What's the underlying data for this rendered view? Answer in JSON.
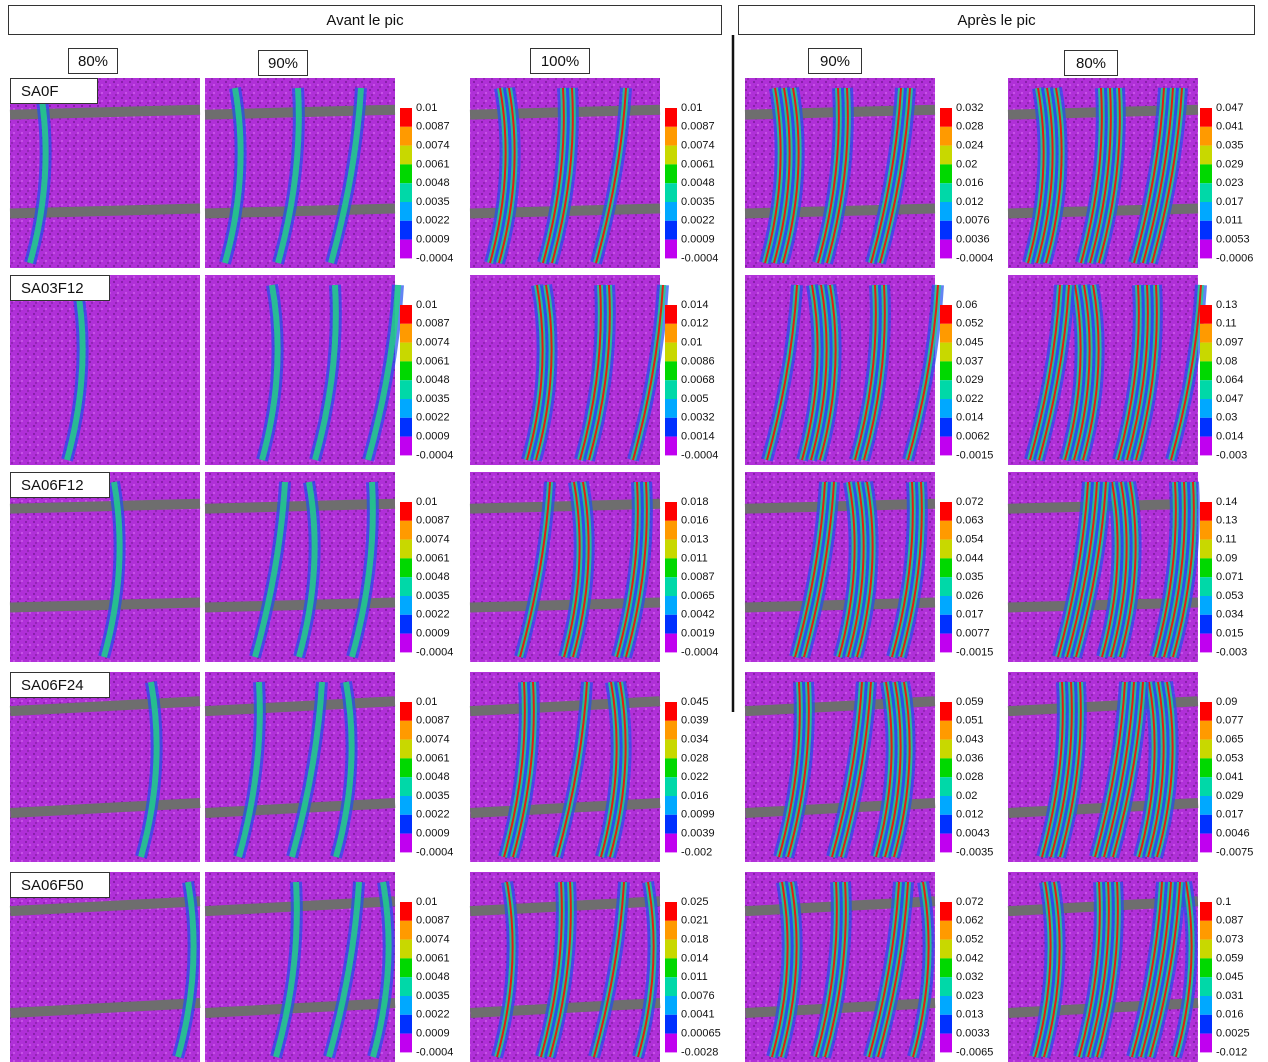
{
  "header": {
    "before": "Avant le pic",
    "after": "Après le pic"
  },
  "columns": [
    "80%",
    "90%",
    "100%",
    "90%",
    "80%"
  ],
  "rows": [
    {
      "label": "SA0F",
      "scales": [
        [
          "0.01",
          "0.0087",
          "0.0074",
          "0.0061",
          "0.0048",
          "0.0035",
          "0.0022",
          "0.0009",
          "-0.0004"
        ],
        [
          "0.01",
          "0.0087",
          "0.0074",
          "0.0061",
          "0.0048",
          "0.0035",
          "0.0022",
          "0.0009",
          "-0.0004"
        ],
        [
          "0.032",
          "0.028",
          "0.024",
          "0.02",
          "0.016",
          "0.012",
          "0.0076",
          "0.0036",
          "-0.0004"
        ],
        [
          "0.047",
          "0.041",
          "0.035",
          "0.029",
          "0.023",
          "0.017",
          "0.011",
          "0.0053",
          "-0.0006"
        ]
      ]
    },
    {
      "label": "SA03F12",
      "scales": [
        [
          "0.01",
          "0.0087",
          "0.0074",
          "0.0061",
          "0.0048",
          "0.0035",
          "0.0022",
          "0.0009",
          "-0.0004"
        ],
        [
          "0.014",
          "0.012",
          "0.01",
          "0.0086",
          "0.0068",
          "0.005",
          "0.0032",
          "0.0014",
          "-0.0004"
        ],
        [
          "0.06",
          "0.052",
          "0.045",
          "0.037",
          "0.029",
          "0.022",
          "0.014",
          "0.0062",
          "-0.0015"
        ],
        [
          "0.13",
          "0.11",
          "0.097",
          "0.08",
          "0.064",
          "0.047",
          "0.03",
          "0.014",
          "-0.003"
        ]
      ]
    },
    {
      "label": "SA06F12",
      "scales": [
        [
          "0.01",
          "0.0087",
          "0.0074",
          "0.0061",
          "0.0048",
          "0.0035",
          "0.0022",
          "0.0009",
          "-0.0004"
        ],
        [
          "0.018",
          "0.016",
          "0.013",
          "0.011",
          "0.0087",
          "0.0065",
          "0.0042",
          "0.0019",
          "-0.0004"
        ],
        [
          "0.072",
          "0.063",
          "0.054",
          "0.044",
          "0.035",
          "0.026",
          "0.017",
          "0.0077",
          "-0.0015"
        ],
        [
          "0.14",
          "0.13",
          "0.11",
          "0.09",
          "0.071",
          "0.053",
          "0.034",
          "0.015",
          "-0.003"
        ]
      ]
    },
    {
      "label": "SA06F24",
      "scales": [
        [
          "0.01",
          "0.0087",
          "0.0074",
          "0.0061",
          "0.0048",
          "0.0035",
          "0.0022",
          "0.0009",
          "-0.0004"
        ],
        [
          "0.045",
          "0.039",
          "0.034",
          "0.028",
          "0.022",
          "0.016",
          "0.0099",
          "0.0039",
          "-0.002"
        ],
        [
          "0.059",
          "0.051",
          "0.043",
          "0.036",
          "0.028",
          "0.02",
          "0.012",
          "0.0043",
          "-0.0035"
        ],
        [
          "0.09",
          "0.077",
          "0.065",
          "0.053",
          "0.041",
          "0.029",
          "0.017",
          "0.0046",
          "-0.0075"
        ]
      ]
    },
    {
      "label": "SA06F50",
      "scales": [
        [
          "0.01",
          "0.0087",
          "0.0074",
          "0.0061",
          "0.0048",
          "0.0035",
          "0.0022",
          "0.0009",
          "-0.0004"
        ],
        [
          "0.025",
          "0.021",
          "0.018",
          "0.014",
          "0.011",
          "0.0076",
          "0.0041",
          "0.00065",
          "-0.0028"
        ],
        [
          "0.072",
          "0.062",
          "0.052",
          "0.042",
          "0.032",
          "0.023",
          "0.013",
          "0.0033",
          "-0.0065"
        ],
        [
          "0.1",
          "0.087",
          "0.073",
          "0.059",
          "0.045",
          "0.031",
          "0.016",
          "0.0025",
          "-0.012"
        ]
      ]
    }
  ]
}
